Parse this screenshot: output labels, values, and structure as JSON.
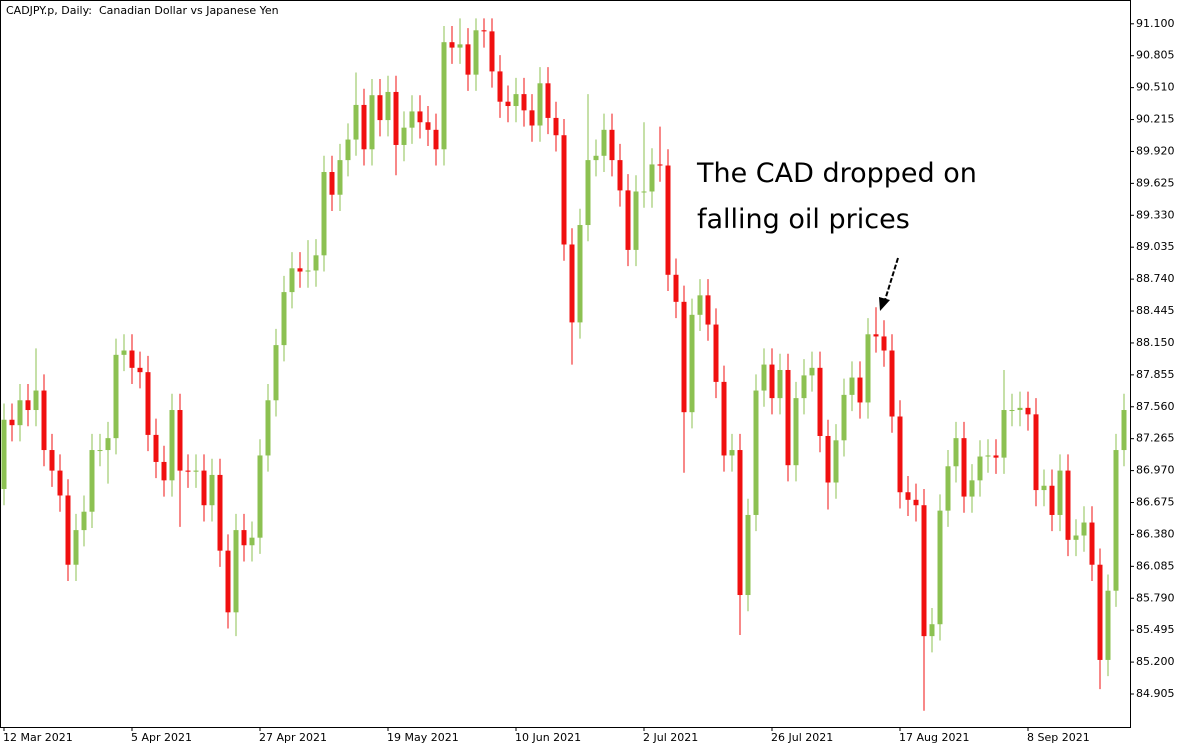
{
  "chart_data": {
    "type": "candlestick",
    "title": "CADJPY.p, Daily:  Canadian Dollar vs Japanese Yen",
    "annotation": [
      "The CAD dropped on",
      "falling oil prices"
    ],
    "up_color": "#8cc152",
    "down_color": "#f01010",
    "categories": [
      "12 Mar 2021",
      null,
      null,
      null,
      null,
      null,
      null,
      null,
      null,
      null,
      null,
      null,
      null,
      null,
      null,
      null,
      "5 Apr 2021",
      null,
      null,
      null,
      null,
      null,
      null,
      null,
      null,
      null,
      null,
      null,
      null,
      null,
      null,
      null,
      "27 Apr 2021",
      null,
      null,
      null,
      null,
      null,
      null,
      null,
      null,
      null,
      null,
      null,
      null,
      null,
      null,
      null,
      "19 May 2021",
      null,
      null,
      null,
      null,
      null,
      null,
      null,
      null,
      null,
      null,
      null,
      null,
      null,
      null,
      null,
      "10 Jun 2021",
      null,
      null,
      null,
      null,
      null,
      null,
      null,
      null,
      null,
      null,
      null,
      null,
      null,
      null,
      null,
      "2 Jul 2021",
      null,
      null,
      null,
      null,
      null,
      null,
      null,
      null,
      null,
      null,
      null,
      null,
      null,
      null,
      null,
      "26 Jul 2021",
      null,
      null,
      null,
      null,
      null,
      null,
      null,
      null,
      null,
      null,
      null,
      null,
      null,
      null,
      null,
      "17 Aug 2021",
      null,
      null,
      null,
      null,
      null,
      null,
      null,
      null,
      null,
      null,
      null,
      null,
      null,
      null,
      null,
      "8 Sep 2021",
      null,
      null,
      null,
      null,
      null,
      null,
      null,
      null,
      null,
      null,
      null,
      null
    ],
    "open": [
      86.8,
      87.44,
      87.39,
      87.62,
      87.53,
      87.71,
      87.16,
      86.97,
      86.74,
      86.1,
      86.42,
      86.59,
      87.16,
      87.16,
      87.27,
      88.04,
      88.08,
      87.92,
      87.88,
      87.3,
      87.05,
      86.88,
      87.53,
      86.97,
      86.96,
      86.97,
      86.65,
      86.93,
      86.23,
      85.66,
      86.42,
      86.28,
      86.35,
      87.11,
      87.62,
      88.13,
      88.62,
      88.84,
      88.81,
      88.82,
      88.96,
      89.73,
      89.52,
      89.84,
      90.03,
      90.35,
      89.94,
      90.44,
      90.21,
      90.47,
      89.98,
      90.14,
      90.29,
      90.19,
      90.12,
      89.94,
      90.93,
      90.88,
      90.91,
      90.63,
      91.04,
      91.03,
      90.66,
      90.38,
      90.34,
      90.45,
      90.3,
      90.16,
      90.55,
      90.23,
      90.07,
      89.06,
      88.34,
      89.24,
      89.84,
      89.88,
      90.12,
      89.84,
      89.56,
      89.01,
      89.55,
      89.55,
      89.8,
      89.79,
      88.78,
      88.53,
      87.51,
      88.41,
      88.59,
      88.32,
      87.79,
      87.11,
      87.16,
      85.82,
      86.56,
      87.71,
      87.95,
      87.64,
      87.9,
      87.02,
      87.64,
      87.85,
      87.92,
      87.29,
      86.86,
      87.25,
      87.67,
      87.83,
      87.6,
      88.23,
      88.21,
      88.08,
      87.47,
      86.77,
      86.7,
      86.65,
      85.44,
      85.55,
      86.6,
      87.01,
      87.27,
      86.73,
      86.88,
      87.1,
      87.11,
      87.09,
      87.53,
      87.53,
      87.55,
      87.49,
      86.79,
      86.83,
      86.56,
      86.97,
      86.33,
      86.37,
      86.49,
      86.1,
      85.22,
      85.86,
      87.16
    ],
    "high": [
      87.59,
      87.59,
      87.77,
      87.77,
      88.1,
      87.86,
      87.31,
      87.12,
      86.89,
      86.57,
      86.74,
      87.31,
      87.31,
      87.42,
      88.19,
      88.23,
      88.23,
      88.07,
      88.03,
      87.45,
      87.2,
      87.68,
      87.68,
      87.12,
      87.12,
      87.12,
      87.08,
      87.08,
      86.38,
      86.57,
      86.57,
      86.5,
      87.26,
      87.77,
      88.28,
      88.77,
      88.99,
      88.99,
      89.1,
      89.11,
      89.88,
      89.88,
      89.99,
      90.18,
      90.65,
      90.5,
      90.59,
      90.59,
      90.62,
      90.62,
      90.29,
      90.44,
      90.44,
      90.34,
      90.27,
      91.08,
      91.08,
      91.15,
      91.06,
      91.15,
      91.15,
      91.15,
      90.81,
      90.53,
      90.6,
      90.6,
      90.45,
      90.7,
      90.7,
      90.38,
      90.22,
      89.21,
      89.39,
      90.45,
      90.03,
      90.27,
      90.27,
      89.99,
      89.71,
      89.7,
      90.19,
      89.95,
      90.15,
      89.94,
      88.93,
      88.68,
      88.56,
      88.74,
      88.74,
      88.47,
      87.94,
      87.31,
      87.31,
      86.71,
      87.86,
      88.1,
      88.1,
      88.05,
      88.05,
      87.79,
      88.0,
      88.07,
      88.07,
      87.44,
      87.4,
      87.82,
      87.98,
      87.98,
      88.38,
      88.48,
      88.36,
      88.23,
      87.62,
      86.92,
      86.85,
      86.8,
      85.7,
      86.75,
      87.16,
      87.42,
      87.42,
      87.03,
      87.25,
      87.26,
      87.26,
      87.9,
      87.68,
      87.7,
      87.7,
      87.64,
      86.98,
      86.98,
      87.12,
      87.12,
      86.52,
      86.64,
      86.64,
      86.25,
      86.01,
      87.31,
      87.68
    ],
    "low": [
      86.65,
      87.24,
      87.24,
      87.38,
      87.38,
      87.01,
      86.82,
      86.59,
      85.95,
      85.95,
      86.27,
      86.44,
      87.01,
      86.85,
      87.12,
      87.89,
      87.77,
      87.73,
      87.15,
      86.9,
      86.73,
      86.73,
      86.45,
      86.81,
      86.81,
      86.5,
      86.5,
      86.08,
      85.51,
      85.44,
      86.13,
      86.13,
      86.2,
      86.96,
      87.47,
      87.98,
      88.47,
      88.66,
      88.66,
      88.67,
      88.81,
      89.37,
      89.37,
      89.69,
      89.88,
      89.79,
      89.79,
      90.06,
      90.06,
      89.7,
      89.83,
      89.99,
      90.04,
      89.97,
      89.79,
      89.79,
      90.73,
      90.73,
      90.48,
      90.48,
      90.88,
      90.51,
      90.23,
      90.19,
      90.19,
      90.15,
      90.01,
      90.01,
      90.08,
      89.92,
      88.91,
      87.95,
      88.19,
      89.09,
      89.69,
      89.73,
      89.69,
      89.41,
      88.86,
      88.86,
      89.4,
      89.4,
      89.64,
      88.63,
      88.38,
      86.95,
      87.36,
      88.26,
      88.17,
      87.64,
      86.96,
      86.96,
      85.45,
      85.67,
      86.41,
      87.56,
      87.49,
      87.49,
      86.87,
      86.87,
      87.49,
      87.7,
      87.14,
      86.61,
      86.71,
      87.1,
      87.52,
      87.45,
      87.45,
      88.06,
      87.93,
      87.32,
      86.62,
      86.55,
      86.5,
      84.75,
      85.29,
      85.4,
      86.45,
      86.86,
      86.58,
      86.58,
      86.73,
      86.95,
      86.94,
      86.94,
      87.38,
      87.38,
      87.34,
      86.64,
      86.64,
      86.41,
      86.41,
      86.18,
      86.18,
      86.22,
      85.95,
      84.95,
      85.07,
      85.71,
      87.01
    ],
    "close": [
      87.44,
      87.39,
      87.62,
      87.53,
      87.71,
      87.16,
      86.97,
      86.74,
      86.1,
      86.42,
      86.59,
      87.16,
      87.16,
      87.27,
      88.04,
      88.08,
      87.92,
      87.88,
      87.3,
      87.05,
      86.88,
      87.53,
      86.97,
      86.96,
      86.97,
      86.65,
      86.93,
      86.23,
      85.66,
      86.42,
      86.28,
      86.35,
      87.11,
      87.62,
      88.13,
      88.62,
      88.84,
      88.81,
      88.82,
      88.96,
      89.73,
      89.52,
      89.84,
      90.03,
      90.35,
      89.94,
      90.44,
      90.21,
      90.47,
      89.98,
      90.14,
      90.29,
      90.19,
      90.12,
      89.94,
      90.93,
      90.88,
      90.91,
      90.63,
      91.04,
      91.03,
      90.66,
      90.38,
      90.34,
      90.45,
      90.3,
      90.16,
      90.55,
      90.23,
      90.07,
      89.06,
      88.34,
      89.24,
      89.84,
      89.88,
      90.12,
      89.84,
      89.56,
      89.01,
      89.55,
      89.55,
      89.8,
      89.79,
      88.78,
      88.53,
      87.51,
      88.41,
      88.59,
      88.32,
      87.79,
      87.11,
      87.16,
      85.82,
      86.56,
      87.71,
      87.95,
      87.64,
      87.9,
      87.02,
      87.64,
      87.85,
      87.92,
      87.29,
      86.86,
      87.25,
      87.67,
      87.83,
      87.6,
      88.23,
      88.21,
      88.08,
      87.47,
      86.77,
      86.7,
      86.65,
      85.44,
      85.55,
      86.6,
      87.01,
      87.27,
      86.73,
      86.88,
      87.1,
      87.11,
      87.09,
      87.53,
      87.53,
      87.55,
      87.49,
      86.79,
      86.83,
      86.56,
      86.97,
      86.33,
      86.37,
      86.49,
      86.1,
      85.22,
      85.86,
      87.16,
      87.53
    ],
    "ylim": [
      84.6,
      91.32
    ],
    "yticks": [
      {
        "value": 91.1,
        "label": "91.100"
      },
      {
        "value": 90.805,
        "label": "90.805"
      },
      {
        "value": 90.51,
        "label": "90.510"
      },
      {
        "value": 90.215,
        "label": "90.215"
      },
      {
        "value": 89.92,
        "label": "89.920"
      },
      {
        "value": 89.625,
        "label": "89.625"
      },
      {
        "value": 89.33,
        "label": "89.330"
      },
      {
        "value": 89.035,
        "label": "89.035"
      },
      {
        "value": 88.74,
        "label": "88.740"
      },
      {
        "value": 88.445,
        "label": "88.445"
      },
      {
        "value": 88.15,
        "label": "88.150"
      },
      {
        "value": 87.855,
        "label": "87.855"
      },
      {
        "value": 87.56,
        "label": "87.560"
      },
      {
        "value": 87.265,
        "label": "87.265"
      },
      {
        "value": 86.97,
        "label": "86.970"
      },
      {
        "value": 86.675,
        "label": "86.675"
      },
      {
        "value": 86.38,
        "label": "86.380"
      },
      {
        "value": 86.085,
        "label": "86.085"
      },
      {
        "value": 85.79,
        "label": "85.790"
      },
      {
        "value": 85.495,
        "label": "85.495"
      },
      {
        "value": 85.2,
        "label": "85.200"
      },
      {
        "value": 84.905,
        "label": "84.905"
      }
    ],
    "grid": false
  }
}
